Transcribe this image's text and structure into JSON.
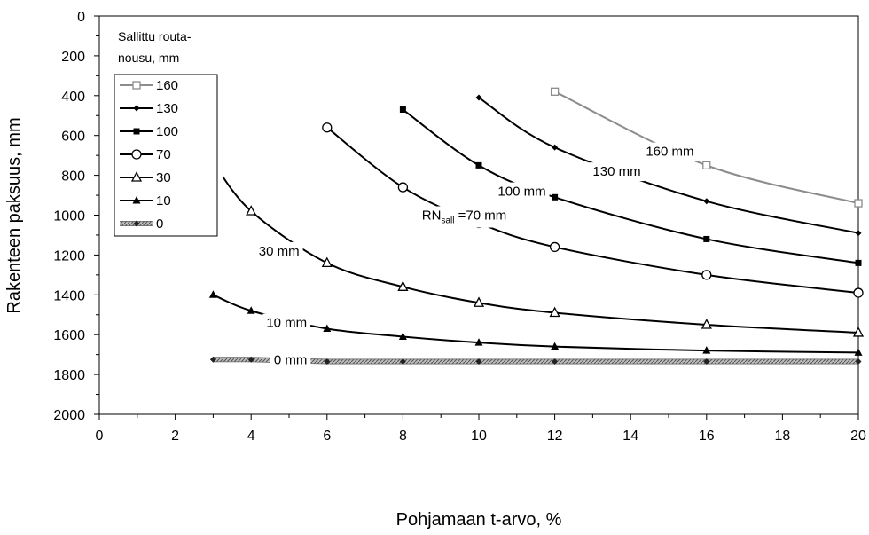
{
  "chart_data": {
    "type": "line",
    "title": "",
    "xlabel": "Pohjamaan t-arvo, %",
    "ylabel": "Rakenteen paksuus, mm",
    "xlim": [
      0,
      20
    ],
    "ylim": [
      2000,
      0
    ],
    "y_inverted": true,
    "x_ticks": [
      0,
      2,
      4,
      6,
      8,
      10,
      12,
      14,
      16,
      18,
      20
    ],
    "y_ticks": [
      0,
      200,
      400,
      600,
      800,
      1000,
      1200,
      1400,
      1600,
      1800,
      2000
    ],
    "grid": false,
    "legend": {
      "position": "top-left",
      "title_lines": [
        "Sallittu routa-",
        "nousu, mm"
      ]
    },
    "series": [
      {
        "name": "160",
        "color": "#8c8c8c",
        "marker": "square-open",
        "x": [
          12,
          16,
          20
        ],
        "y": [
          380,
          750,
          940
        ]
      },
      {
        "name": "130",
        "color": "#000000",
        "marker": "diamond",
        "x": [
          10,
          12,
          16,
          20
        ],
        "y": [
          410,
          660,
          930,
          1090
        ]
      },
      {
        "name": "100",
        "color": "#000000",
        "marker": "square",
        "x": [
          8,
          10,
          12,
          16,
          20
        ],
        "y": [
          470,
          750,
          910,
          1120,
          1240
        ]
      },
      {
        "name": "70",
        "color": "#000000",
        "marker": "circle-open",
        "x": [
          6,
          8,
          10,
          12,
          16,
          20
        ],
        "y": [
          560,
          860,
          1040,
          1160,
          1300,
          1390
        ]
      },
      {
        "name": "30",
        "color": "#000000",
        "marker": "triangle-open",
        "x": [
          3,
          4,
          6,
          8,
          10,
          12,
          16,
          20
        ],
        "y": [
          735,
          980,
          1240,
          1360,
          1440,
          1490,
          1550,
          1590
        ]
      },
      {
        "name": "10",
        "color": "#000000",
        "marker": "triangle",
        "x": [
          3,
          4,
          6,
          8,
          10,
          12,
          16,
          20
        ],
        "y": [
          1400,
          1480,
          1570,
          1610,
          1640,
          1660,
          1680,
          1690
        ]
      },
      {
        "name": "0",
        "color": "#9a9a9a",
        "marker": "diamond-dark",
        "hatched": true,
        "x": [
          3,
          4,
          6,
          8,
          10,
          12,
          16,
          20
        ],
        "y": [
          1725,
          1725,
          1735,
          1735,
          1735,
          1735,
          1735,
          1735
        ]
      }
    ],
    "annotations": [
      {
        "text": "160 mm",
        "x": 14.4,
        "y": 680
      },
      {
        "text": "130 mm",
        "x": 13.0,
        "y": 780
      },
      {
        "text": "100 mm",
        "x": 10.5,
        "y": 880
      },
      {
        "text": "RN",
        "sub": "sall",
        "suffix": " =70 mm",
        "x": 8.5,
        "y": 1000
      },
      {
        "text": "30 mm",
        "x": 4.2,
        "y": 1180
      },
      {
        "text": "10 mm",
        "x": 4.4,
        "y": 1540
      },
      {
        "text": "0 mm",
        "x": 4.6,
        "y": 1725
      }
    ]
  }
}
